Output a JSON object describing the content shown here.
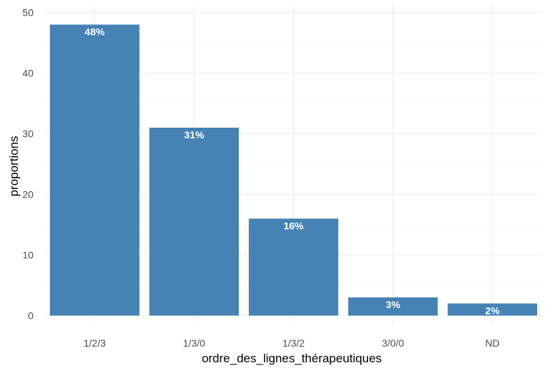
{
  "chart_data": {
    "type": "bar",
    "title": "",
    "xlabel": "ordre_des_lignes_thérapeutiques",
    "ylabel": "proportions",
    "categories": [
      "1/2/3",
      "1/3/0",
      "1/3/2",
      "3/0/0",
      "ND"
    ],
    "values": [
      48,
      31,
      16,
      3,
      2
    ],
    "data_labels": [
      "48%",
      "31%",
      "16%",
      "3%",
      "2%"
    ],
    "ylim": [
      0,
      50
    ],
    "yticks": [
      0,
      10,
      20,
      30,
      40,
      50
    ],
    "grid": true,
    "legend": "none",
    "bar_color": "#4682B4",
    "background": "#ffffff"
  }
}
